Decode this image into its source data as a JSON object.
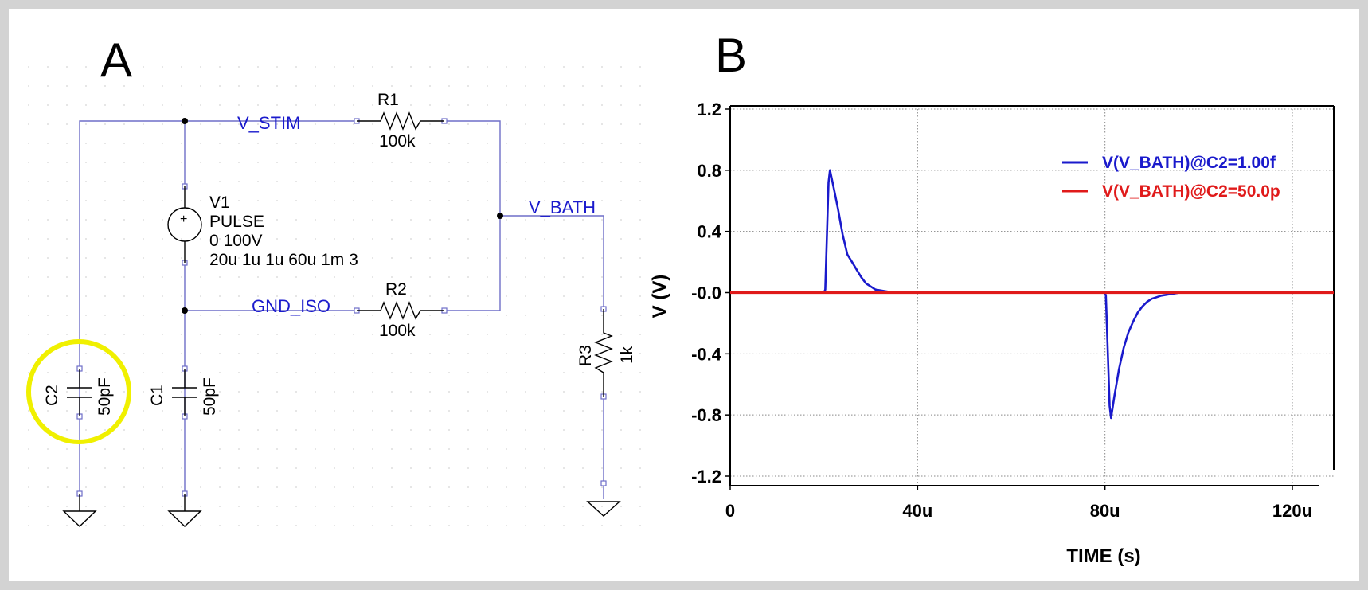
{
  "panel_a": {
    "letter": "A",
    "nets": {
      "v_stim": "V_STIM",
      "gnd_iso": "GND_ISO",
      "v_bath": "V_BATH"
    },
    "r1": {
      "name": "R1",
      "value": "100k"
    },
    "r2": {
      "name": "R2",
      "value": "100k"
    },
    "r3": {
      "name": "R3",
      "value": "1k"
    },
    "v1": {
      "name": "V1",
      "type": "PULSE",
      "line1": "0 100V",
      "line2": "20u 1u 1u 60u 1m 3"
    },
    "c1": {
      "name": "C1",
      "value": "50pF"
    },
    "c2": {
      "name": "C2",
      "value": "50pF"
    },
    "colors": {
      "wire": "#6e6ec8",
      "net_label": "#1a1acc",
      "highlight": "#f0f000"
    }
  },
  "panel_b": {
    "letter": "B",
    "chart_data": {
      "type": "line",
      "xlabel": "TIME (s)",
      "ylabel": "V (V)",
      "xlim": [
        0,
        120
      ],
      "ylim": [
        -1.2,
        1.2
      ],
      "x_unit_suffix": "u",
      "x_ticks": [
        0,
        40,
        80,
        120
      ],
      "x_tick_labels": [
        "0",
        "40u",
        "80u",
        "120u"
      ],
      "y_ticks": [
        1.2,
        0.8,
        0.4,
        0.0,
        -0.4,
        -0.8,
        -1.2
      ],
      "y_tick_labels": [
        "1.2",
        "0.8",
        "0.4",
        "-0.0",
        "-0.4",
        "-0.8",
        "-1.2"
      ],
      "grid": true,
      "legend_position": "top-right",
      "series": [
        {
          "name": "V(V_BATH)@C2=1.00f",
          "color": "#1a1acc",
          "x": [
            0,
            20,
            20.3,
            21,
            21.3,
            22,
            23,
            24,
            25,
            26,
            27,
            28,
            29,
            30,
            31,
            33,
            35,
            80,
            80.2,
            81,
            81.3,
            82,
            83,
            84,
            85,
            86,
            87,
            88,
            89,
            90,
            91,
            92,
            94,
            96,
            120
          ],
          "y": [
            0,
            0,
            0.02,
            0.72,
            0.8,
            0.7,
            0.55,
            0.38,
            0.25,
            0.2,
            0.15,
            0.1,
            0.06,
            0.04,
            0.02,
            0.01,
            0.0,
            0,
            -0.02,
            -0.74,
            -0.82,
            -0.68,
            -0.5,
            -0.36,
            -0.26,
            -0.19,
            -0.13,
            -0.09,
            -0.06,
            -0.04,
            -0.03,
            -0.02,
            -0.01,
            0.0,
            0.0
          ]
        },
        {
          "name": "V(V_BATH)@C2=50.0p",
          "color": "#e01a1a",
          "x": [
            0,
            120
          ],
          "y": [
            0,
            0
          ]
        }
      ]
    }
  }
}
